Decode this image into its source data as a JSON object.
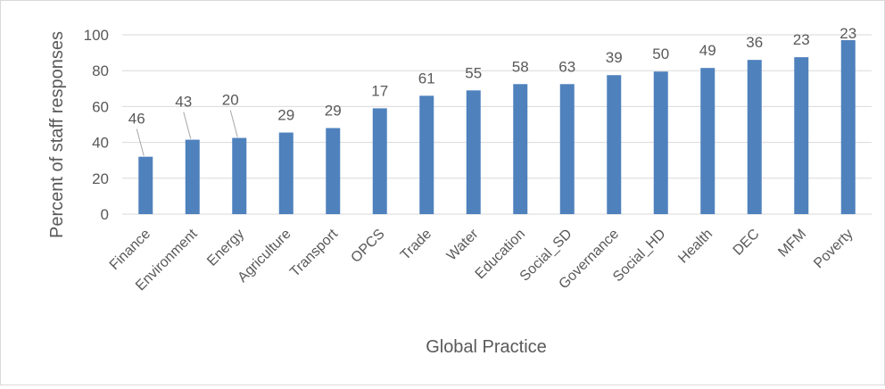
{
  "chart_data": {
    "type": "bar",
    "title": "",
    "xlabel": "Global Practice",
    "ylabel": "Percent of staff responses",
    "ylim": [
      0,
      100
    ],
    "yticks": [
      0,
      20,
      40,
      60,
      80,
      100
    ],
    "grid": true,
    "legend": "none",
    "bar_color": "#4f81bd",
    "categories": [
      "Finance",
      "Environment",
      "Energy",
      "Agriculture",
      "Transport",
      "OPCS",
      "Trade",
      "Water",
      "Education",
      "Social_SD",
      "Governance",
      "Social_HD",
      "Health",
      "DEC",
      "MFM",
      "Poverty"
    ],
    "values": [
      32,
      41.5,
      42.5,
      45.5,
      48,
      59,
      66,
      69,
      72.5,
      72.5,
      77.5,
      79.5,
      81.5,
      86,
      87.5,
      97
    ],
    "data_labels": [
      "46",
      "43",
      "20",
      "29",
      "29",
      "17",
      "61",
      "55",
      "58",
      "63",
      "39",
      "50",
      "49",
      "36",
      "23",
      "23"
    ]
  }
}
